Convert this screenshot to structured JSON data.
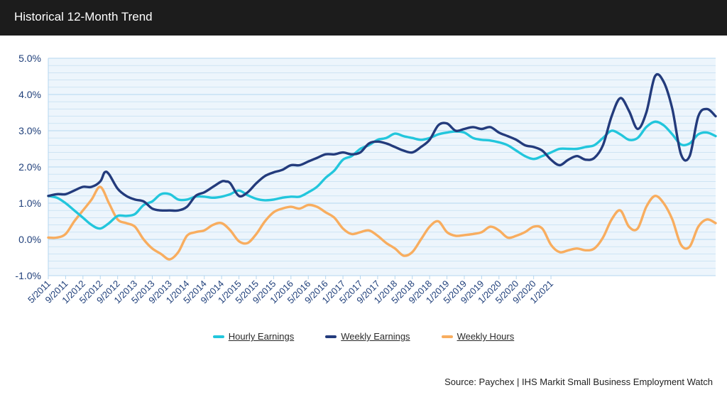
{
  "header": {
    "title": "Historical 12-Month Trend"
  },
  "source": "Source: Paychex | IHS Markit Small Business Employment Watch",
  "colors": {
    "hourly": "#22c6dc",
    "weekly_earnings": "#233b7c",
    "weekly_hours": "#f8ad5f",
    "plot_bg": "#edf5fc",
    "grid": "#b4d6ef",
    "axis_text": "#1f3f7a"
  },
  "chart_data": {
    "type": "line",
    "title": "Historical 12-Month Trend",
    "xlabel": "",
    "ylabel": "",
    "ylim": [
      -1.0,
      5.0
    ],
    "yticks": [
      "-1.0%",
      "0.0%",
      "1.0%",
      "2.0%",
      "3.0%",
      "4.0%",
      "5.0%"
    ],
    "xticks": [
      "5/2011",
      "9/2011",
      "1/2012",
      "5/2012",
      "9/2012",
      "1/2013",
      "5/2013",
      "9/2013",
      "1/2014",
      "5/2014",
      "9/2014",
      "1/2015",
      "5/2015",
      "9/2015",
      "1/2016",
      "5/2016",
      "9/2016",
      "1/2017",
      "5/2017",
      "9/2017",
      "1/2018",
      "5/2018",
      "9/2018",
      "1/2019",
      "5/2019",
      "9/2019",
      "1/2020",
      "5/2020",
      "9/2020",
      "1/2021"
    ],
    "legend_position": "bottom",
    "grid": true,
    "series": [
      {
        "name": "Hourly Earnings",
        "key": "hourly",
        "values": [
          [
            0,
            1.2
          ],
          [
            2,
            1.15
          ],
          [
            4,
            1.0
          ],
          [
            6,
            0.8
          ],
          [
            8,
            0.6
          ],
          [
            10,
            0.4
          ],
          [
            12,
            0.3
          ],
          [
            14,
            0.45
          ],
          [
            16,
            0.65
          ],
          [
            18,
            0.65
          ],
          [
            20,
            0.7
          ],
          [
            22,
            0.95
          ],
          [
            24,
            1.05
          ],
          [
            26,
            1.25
          ],
          [
            28,
            1.25
          ],
          [
            30,
            1.1
          ],
          [
            32,
            1.1
          ],
          [
            34,
            1.18
          ],
          [
            36,
            1.18
          ],
          [
            38,
            1.15
          ],
          [
            40,
            1.18
          ],
          [
            42,
            1.25
          ],
          [
            44,
            1.35
          ],
          [
            46,
            1.22
          ],
          [
            48,
            1.12
          ],
          [
            50,
            1.08
          ],
          [
            52,
            1.1
          ],
          [
            54,
            1.15
          ],
          [
            56,
            1.18
          ],
          [
            58,
            1.18
          ],
          [
            60,
            1.3
          ],
          [
            62,
            1.45
          ],
          [
            64,
            1.7
          ],
          [
            66,
            1.9
          ],
          [
            68,
            2.2
          ],
          [
            70,
            2.3
          ],
          [
            72,
            2.5
          ],
          [
            74,
            2.6
          ],
          [
            76,
            2.75
          ],
          [
            78,
            2.8
          ],
          [
            80,
            2.92
          ],
          [
            82,
            2.85
          ],
          [
            84,
            2.8
          ],
          [
            86,
            2.75
          ],
          [
            88,
            2.8
          ],
          [
            90,
            2.9
          ],
          [
            92,
            2.95
          ],
          [
            94,
            2.98
          ],
          [
            96,
            2.95
          ],
          [
            98,
            2.8
          ],
          [
            100,
            2.75
          ],
          [
            102,
            2.73
          ],
          [
            104,
            2.68
          ],
          [
            106,
            2.6
          ],
          [
            108,
            2.45
          ],
          [
            110,
            2.3
          ],
          [
            112,
            2.22
          ],
          [
            114,
            2.3
          ],
          [
            116,
            2.4
          ],
          [
            118,
            2.5
          ],
          [
            120,
            2.5
          ],
          [
            122,
            2.5
          ],
          [
            124,
            2.55
          ],
          [
            126,
            2.6
          ],
          [
            128,
            2.8
          ],
          [
            130,
            3.0
          ],
          [
            132,
            2.9
          ],
          [
            134,
            2.75
          ],
          [
            136,
            2.8
          ],
          [
            138,
            3.1
          ],
          [
            140,
            3.25
          ],
          [
            142,
            3.15
          ],
          [
            144,
            2.9
          ],
          [
            146,
            2.62
          ],
          [
            148,
            2.65
          ],
          [
            150,
            2.9
          ],
          [
            152,
            2.95
          ],
          [
            154,
            2.85
          ]
        ]
      },
      {
        "name": "Weekly Earnings",
        "key": "weekly_earnings",
        "values": [
          [
            0,
            1.2
          ],
          [
            2,
            1.25
          ],
          [
            4,
            1.25
          ],
          [
            6,
            1.35
          ],
          [
            8,
            1.45
          ],
          [
            10,
            1.45
          ],
          [
            12,
            1.6
          ],
          [
            13,
            1.85
          ],
          [
            14,
            1.8
          ],
          [
            16,
            1.4
          ],
          [
            18,
            1.2
          ],
          [
            20,
            1.1
          ],
          [
            22,
            1.05
          ],
          [
            24,
            0.85
          ],
          [
            26,
            0.8
          ],
          [
            28,
            0.8
          ],
          [
            30,
            0.8
          ],
          [
            32,
            0.9
          ],
          [
            34,
            1.2
          ],
          [
            36,
            1.3
          ],
          [
            38,
            1.45
          ],
          [
            40,
            1.6
          ],
          [
            41,
            1.6
          ],
          [
            42,
            1.55
          ],
          [
            44,
            1.2
          ],
          [
            46,
            1.3
          ],
          [
            48,
            1.55
          ],
          [
            50,
            1.75
          ],
          [
            52,
            1.85
          ],
          [
            54,
            1.92
          ],
          [
            56,
            2.05
          ],
          [
            58,
            2.05
          ],
          [
            60,
            2.15
          ],
          [
            62,
            2.25
          ],
          [
            64,
            2.35
          ],
          [
            66,
            2.35
          ],
          [
            68,
            2.4
          ],
          [
            70,
            2.35
          ],
          [
            72,
            2.4
          ],
          [
            74,
            2.65
          ],
          [
            76,
            2.7
          ],
          [
            78,
            2.65
          ],
          [
            80,
            2.55
          ],
          [
            82,
            2.45
          ],
          [
            84,
            2.4
          ],
          [
            86,
            2.55
          ],
          [
            88,
            2.75
          ],
          [
            90,
            3.15
          ],
          [
            92,
            3.2
          ],
          [
            94,
            3.0
          ],
          [
            96,
            3.05
          ],
          [
            98,
            3.1
          ],
          [
            100,
            3.05
          ],
          [
            102,
            3.1
          ],
          [
            104,
            2.95
          ],
          [
            106,
            2.85
          ],
          [
            108,
            2.75
          ],
          [
            110,
            2.6
          ],
          [
            112,
            2.55
          ],
          [
            114,
            2.45
          ],
          [
            116,
            2.2
          ],
          [
            118,
            2.05
          ],
          [
            120,
            2.2
          ],
          [
            122,
            2.3
          ],
          [
            124,
            2.2
          ],
          [
            126,
            2.25
          ],
          [
            128,
            2.6
          ],
          [
            130,
            3.4
          ],
          [
            132,
            3.9
          ],
          [
            134,
            3.55
          ],
          [
            136,
            3.05
          ],
          [
            138,
            3.5
          ],
          [
            140,
            4.5
          ],
          [
            142,
            4.35
          ],
          [
            144,
            3.6
          ],
          [
            146,
            2.35
          ],
          [
            148,
            2.3
          ],
          [
            150,
            3.4
          ],
          [
            152,
            3.6
          ],
          [
            154,
            3.4
          ]
        ]
      },
      {
        "name": "Weekly Hours",
        "key": "weekly_hours",
        "values": [
          [
            0,
            0.05
          ],
          [
            2,
            0.05
          ],
          [
            4,
            0.15
          ],
          [
            6,
            0.5
          ],
          [
            8,
            0.8
          ],
          [
            10,
            1.1
          ],
          [
            12,
            1.45
          ],
          [
            14,
            1.0
          ],
          [
            16,
            0.55
          ],
          [
            18,
            0.45
          ],
          [
            20,
            0.35
          ],
          [
            22,
            0.0
          ],
          [
            24,
            -0.25
          ],
          [
            26,
            -0.4
          ],
          [
            28,
            -0.55
          ],
          [
            30,
            -0.35
          ],
          [
            32,
            0.1
          ],
          [
            34,
            0.2
          ],
          [
            36,
            0.25
          ],
          [
            38,
            0.4
          ],
          [
            40,
            0.45
          ],
          [
            42,
            0.25
          ],
          [
            44,
            -0.05
          ],
          [
            46,
            -0.1
          ],
          [
            48,
            0.15
          ],
          [
            50,
            0.5
          ],
          [
            52,
            0.75
          ],
          [
            54,
            0.85
          ],
          [
            56,
            0.9
          ],
          [
            58,
            0.85
          ],
          [
            60,
            0.95
          ],
          [
            62,
            0.9
          ],
          [
            64,
            0.75
          ],
          [
            66,
            0.6
          ],
          [
            68,
            0.3
          ],
          [
            70,
            0.15
          ],
          [
            72,
            0.2
          ],
          [
            74,
            0.25
          ],
          [
            76,
            0.1
          ],
          [
            78,
            -0.1
          ],
          [
            80,
            -0.25
          ],
          [
            82,
            -0.45
          ],
          [
            84,
            -0.35
          ],
          [
            86,
            0.0
          ],
          [
            88,
            0.35
          ],
          [
            90,
            0.5
          ],
          [
            92,
            0.2
          ],
          [
            94,
            0.1
          ],
          [
            96,
            0.12
          ],
          [
            98,
            0.15
          ],
          [
            100,
            0.2
          ],
          [
            102,
            0.35
          ],
          [
            104,
            0.25
          ],
          [
            106,
            0.05
          ],
          [
            108,
            0.1
          ],
          [
            110,
            0.2
          ],
          [
            112,
            0.35
          ],
          [
            114,
            0.3
          ],
          [
            116,
            -0.15
          ],
          [
            118,
            -0.35
          ],
          [
            120,
            -0.3
          ],
          [
            122,
            -0.25
          ],
          [
            124,
            -0.3
          ],
          [
            126,
            -0.25
          ],
          [
            128,
            0.05
          ],
          [
            130,
            0.55
          ],
          [
            132,
            0.8
          ],
          [
            134,
            0.35
          ],
          [
            136,
            0.3
          ],
          [
            138,
            0.9
          ],
          [
            140,
            1.2
          ],
          [
            142,
            1.0
          ],
          [
            144,
            0.55
          ],
          [
            146,
            -0.15
          ],
          [
            148,
            -0.2
          ],
          [
            150,
            0.35
          ],
          [
            152,
            0.55
          ],
          [
            154,
            0.45
          ]
        ]
      }
    ]
  }
}
